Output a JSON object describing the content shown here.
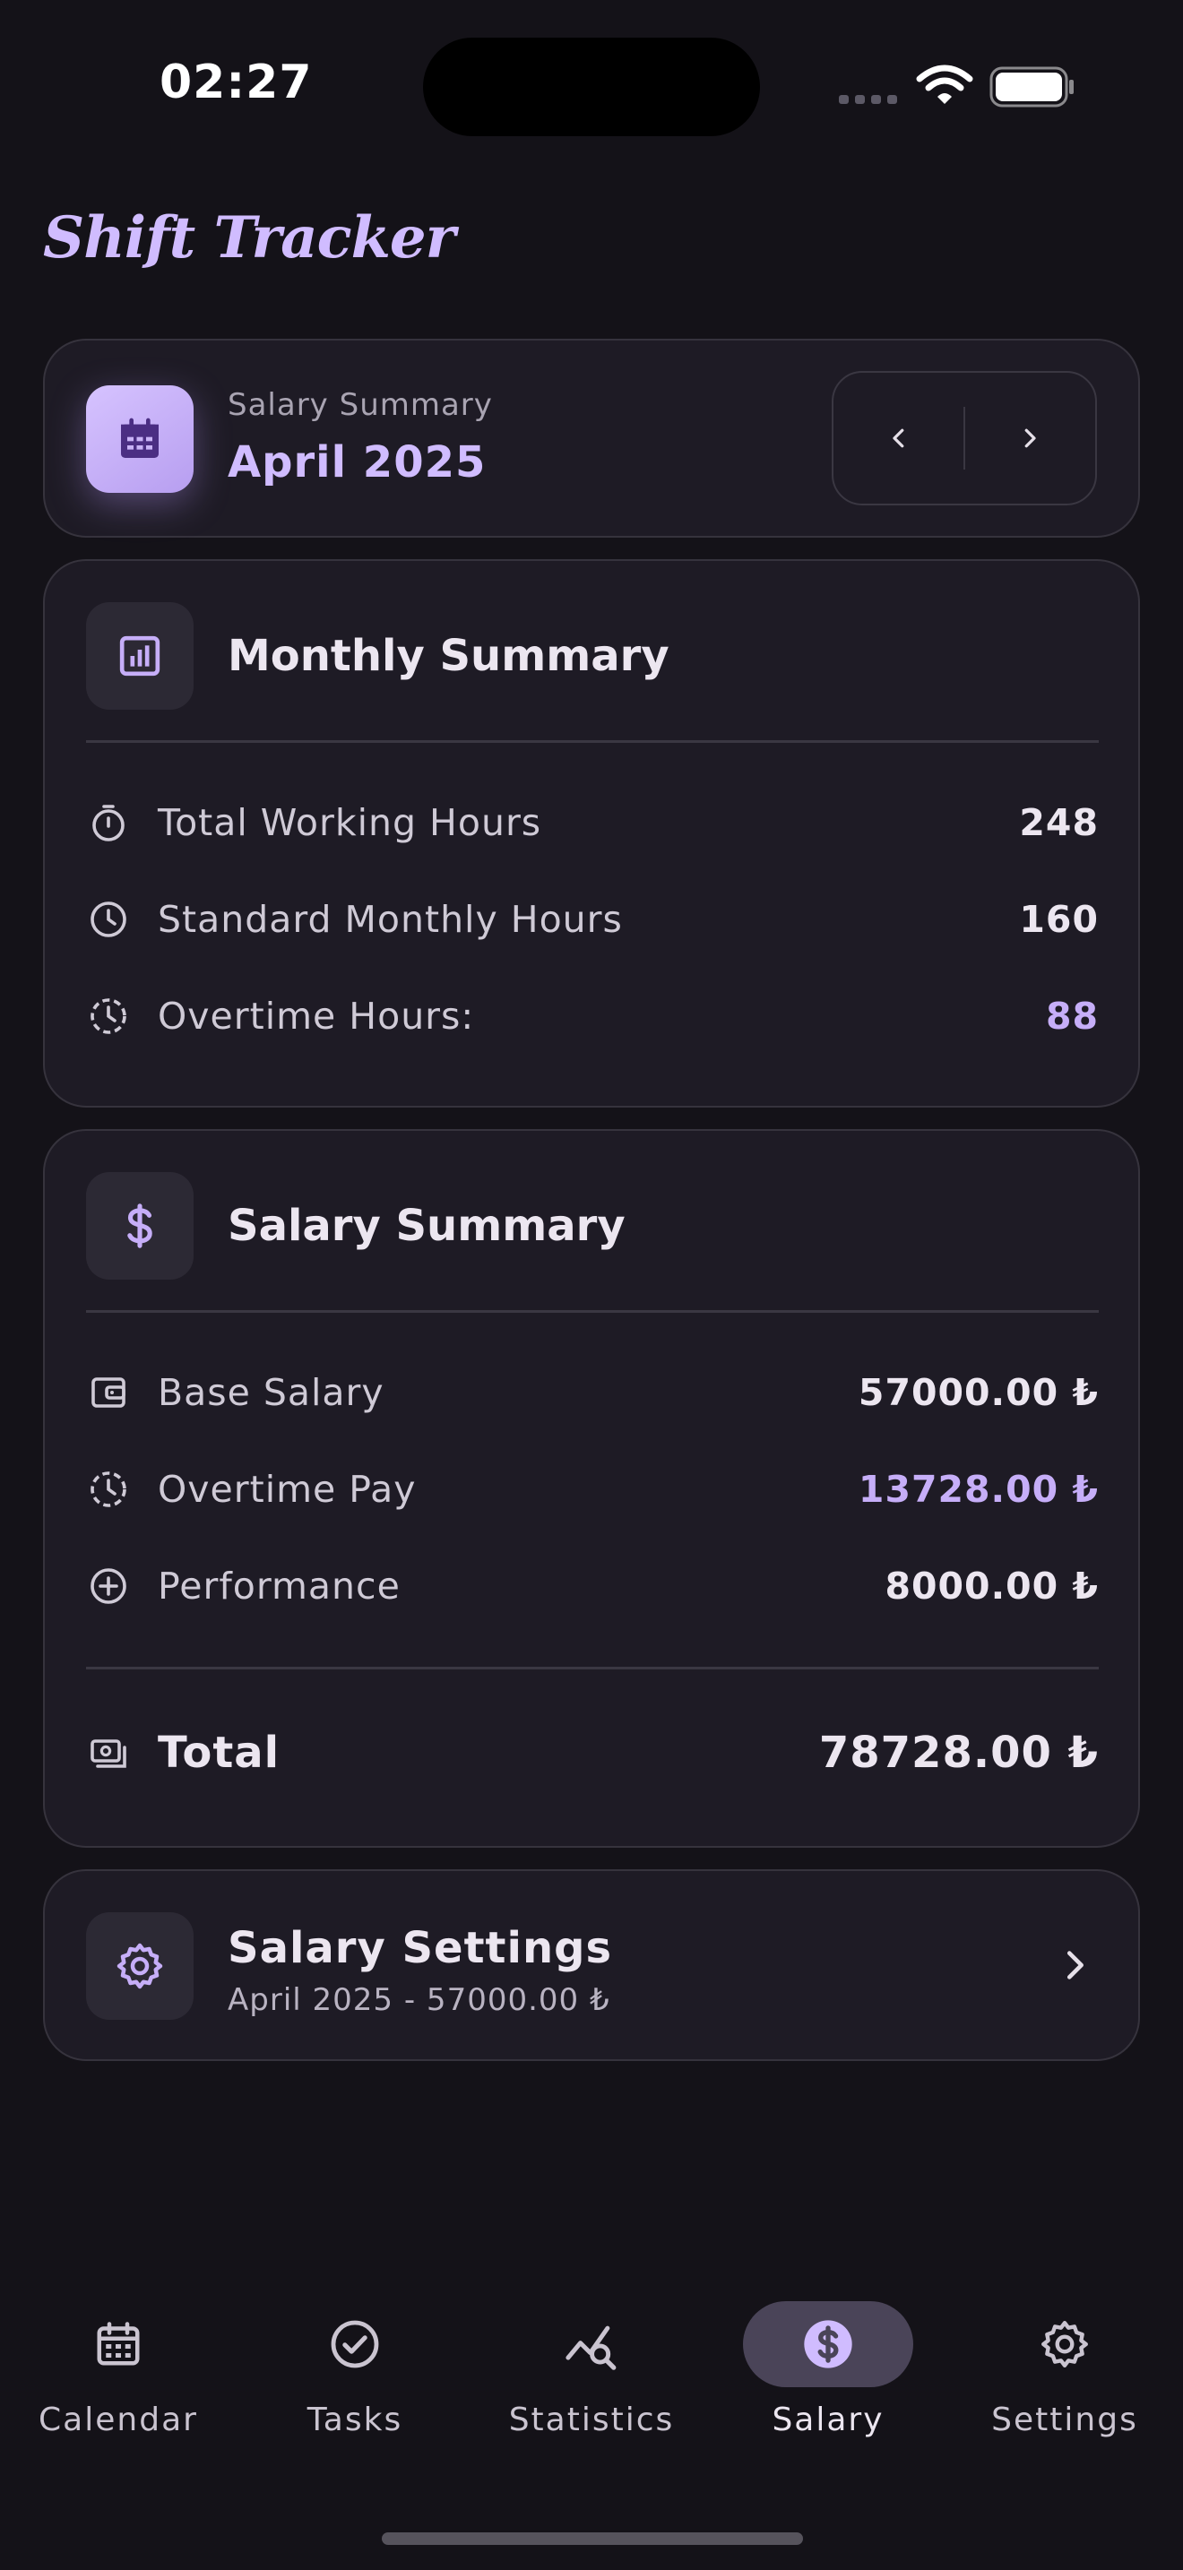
{
  "status_bar": {
    "time": "02:27"
  },
  "app": {
    "title": "Shift Tracker"
  },
  "header": {
    "subtitle": "Salary Summary",
    "month": "April 2025",
    "prev_icon": "chevron-left-icon",
    "next_icon": "chevron-right-icon"
  },
  "monthly_summary": {
    "title": "Monthly Summary",
    "rows": [
      {
        "icon": "stopwatch-icon",
        "label": "Total Working Hours",
        "value": "248"
      },
      {
        "icon": "clock-icon",
        "label": "Standard Monthly Hours",
        "value": "160"
      },
      {
        "icon": "timer-dashed-icon",
        "label": "Overtime Hours:",
        "value": "88"
      }
    ]
  },
  "salary_summary": {
    "title": "Salary Summary",
    "rows": [
      {
        "icon": "wallet-icon",
        "label": "Base Salary",
        "value": "57000.00 ₺"
      },
      {
        "icon": "timer-dashed-icon",
        "label": "Overtime Pay",
        "value": "13728.00 ₺"
      },
      {
        "icon": "plus-circle-icon",
        "label": "Performance",
        "value": "8000.00 ₺"
      }
    ],
    "total_label": "Total",
    "total_value": "78728.00 ₺"
  },
  "salary_settings": {
    "title": "Salary Settings",
    "subtitle": "April 2025 - 57000.00 ₺"
  },
  "bottom_nav": [
    {
      "label": "Calendar",
      "icon": "calendar-icon",
      "active": false
    },
    {
      "label": "Tasks",
      "icon": "check-circle-icon",
      "active": false
    },
    {
      "label": "Statistics",
      "icon": "chart-search-icon",
      "active": false
    },
    {
      "label": "Salary",
      "icon": "dollar-circle-icon",
      "active": true
    },
    {
      "label": "Settings",
      "icon": "gear-icon",
      "active": false
    }
  ],
  "colors": {
    "background": "#141218",
    "card": "#1e1b25",
    "accent": "#d0bcff",
    "active_pill": "#4a4458"
  }
}
